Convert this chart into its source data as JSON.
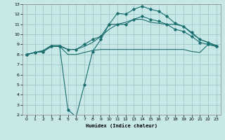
{
  "bg_color": "#c8e8e8",
  "grid_color": "#a0c8c8",
  "line_color": "#1a6e6e",
  "xlabel": "Humidex (Indice chaleur)",
  "xlim": [
    -0.5,
    23.5
  ],
  "ylim": [
    2,
    13
  ],
  "xticks": [
    0,
    1,
    2,
    3,
    4,
    5,
    6,
    7,
    8,
    9,
    10,
    11,
    12,
    13,
    14,
    15,
    16,
    17,
    18,
    19,
    20,
    21,
    22,
    23
  ],
  "yticks": [
    2,
    3,
    4,
    5,
    6,
    7,
    8,
    9,
    10,
    11,
    12,
    13
  ],
  "curve_flat_x": [
    0,
    1,
    2,
    3,
    4,
    5,
    6,
    7,
    8,
    9,
    10,
    11,
    12,
    13,
    14,
    15,
    16,
    17,
    18,
    19,
    20,
    21,
    22,
    23
  ],
  "curve_flat_y": [
    8.0,
    8.2,
    8.3,
    8.8,
    8.8,
    8.0,
    8.0,
    8.2,
    8.4,
    8.5,
    8.5,
    8.5,
    8.5,
    8.5,
    8.5,
    8.5,
    8.5,
    8.5,
    8.5,
    8.5,
    8.3,
    8.2,
    9.0,
    8.8
  ],
  "curve_top_x": [
    0,
    1,
    2,
    3,
    4,
    5,
    6,
    7,
    8,
    9,
    10,
    11,
    12,
    13,
    14,
    15,
    16,
    17,
    18,
    19,
    20,
    21,
    22,
    23
  ],
  "curve_top_y": [
    8.0,
    8.2,
    8.3,
    8.8,
    8.8,
    8.5,
    8.5,
    9.0,
    9.5,
    9.8,
    11.0,
    12.1,
    12.0,
    12.5,
    12.8,
    12.5,
    12.3,
    11.8,
    11.1,
    10.8,
    10.2,
    9.5,
    9.2,
    8.8
  ],
  "curve_mid_x": [
    0,
    1,
    2,
    3,
    4,
    5,
    6,
    7,
    8,
    9,
    10,
    11,
    12,
    13,
    14,
    15,
    16,
    17,
    18,
    19,
    20,
    21,
    22,
    23
  ],
  "curve_mid_y": [
    8.0,
    8.2,
    8.4,
    8.9,
    8.9,
    8.5,
    8.5,
    8.8,
    9.2,
    9.8,
    10.5,
    11.0,
    11.2,
    11.5,
    11.5,
    11.2,
    11.1,
    11.0,
    11.0,
    10.8,
    10.1,
    9.5,
    9.2,
    8.9
  ],
  "curve_dip_x": [
    0,
    1,
    2,
    3,
    4,
    5,
    6,
    7,
    8,
    9,
    10,
    11,
    12,
    13,
    14,
    15,
    16,
    17,
    18,
    19,
    20,
    21,
    22,
    23
  ],
  "curve_dip_y": [
    8.0,
    8.2,
    8.3,
    8.8,
    8.8,
    2.5,
    1.8,
    5.0,
    8.3,
    9.5,
    11.0,
    11.0,
    11.0,
    11.5,
    11.8,
    11.5,
    11.3,
    11.0,
    10.5,
    10.3,
    9.8,
    9.2,
    9.0,
    8.8
  ]
}
